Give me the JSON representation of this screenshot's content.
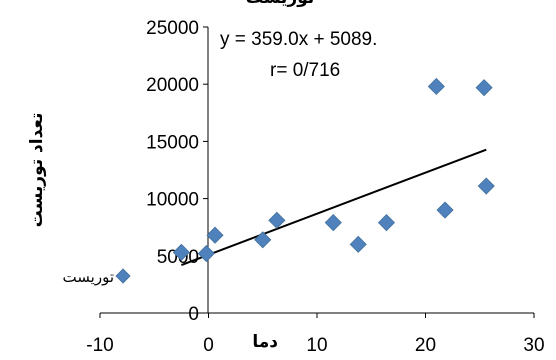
{
  "chart_data": {
    "type": "scatter",
    "title": "توریست",
    "xlabel": "دما",
    "ylabel": "تعداد توریست",
    "xlim": [
      -10,
      30
    ],
    "ylim": [
      0,
      25000
    ],
    "x_ticks": [
      "-10",
      "0",
      "10",
      "20",
      "30"
    ],
    "y_ticks": [
      "0",
      "5000",
      "10000",
      "15000",
      "20000",
      "25000"
    ],
    "grid": false,
    "legend": {
      "placement": "left",
      "entries": [
        "توریست"
      ]
    },
    "series": [
      {
        "name": "توریست",
        "color": "#4f81bd",
        "marker": "diamond",
        "points": [
          {
            "x": -2.5,
            "y": 5300
          },
          {
            "x": -0.2,
            "y": 5200
          },
          {
            "x": 0.6,
            "y": 6800
          },
          {
            "x": 5.0,
            "y": 6400
          },
          {
            "x": 6.3,
            "y": 8100
          },
          {
            "x": 11.5,
            "y": 7900
          },
          {
            "x": 13.8,
            "y": 6000
          },
          {
            "x": 16.4,
            "y": 7900
          },
          {
            "x": 21.0,
            "y": 19800
          },
          {
            "x": 21.8,
            "y": 9000
          },
          {
            "x": 25.4,
            "y": 19700
          },
          {
            "x": 25.6,
            "y": 11100
          }
        ]
      }
    ],
    "trendline": {
      "slope": 359.0,
      "intercept": 5089,
      "x_range": [
        -2.5,
        25.6
      ],
      "equation_label": "y = 359.0x + 5089.",
      "r_label": "r= 0/716"
    }
  }
}
